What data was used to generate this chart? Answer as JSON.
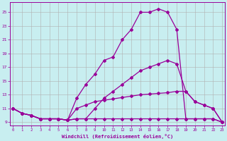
{
  "bg_color": "#c8eef0",
  "line_color": "#990099",
  "grid_color": "#b0b0b0",
  "xlabel": "Windchill (Refroidissement éolien,°C)",
  "xticks": [
    0,
    1,
    2,
    3,
    4,
    5,
    6,
    7,
    8,
    9,
    10,
    11,
    12,
    13,
    14,
    15,
    16,
    17,
    18,
    19,
    20,
    21,
    22,
    23
  ],
  "yticks": [
    9,
    11,
    13,
    15,
    17,
    19,
    21,
    23,
    25
  ],
  "xlim": [
    -0.3,
    23.3
  ],
  "ylim": [
    8.5,
    26.5
  ],
  "line1_x": [
    0,
    1,
    2,
    3,
    4,
    5,
    6,
    7,
    8,
    9,
    10,
    11,
    12,
    13,
    14,
    15,
    16,
    17,
    18,
    19,
    20,
    21,
    22,
    23
  ],
  "line1_y": [
    11,
    10.3,
    10.0,
    9.5,
    9.5,
    9.5,
    9.3,
    9.5,
    9.5,
    9.5,
    9.5,
    9.5,
    9.5,
    9.5,
    9.5,
    9.5,
    9.5,
    9.5,
    9.5,
    9.5,
    9.5,
    9.5,
    9.5,
    9.0
  ],
  "line2_x": [
    0,
    1,
    2,
    3,
    4,
    5,
    6,
    7,
    8,
    9,
    10,
    11,
    12,
    13,
    14,
    15,
    16,
    17,
    18,
    19,
    20,
    21,
    22,
    23
  ],
  "line2_y": [
    11,
    10.3,
    10.0,
    9.5,
    9.5,
    9.5,
    9.3,
    11.0,
    11.5,
    12.0,
    12.2,
    12.4,
    12.6,
    12.8,
    13.0,
    13.1,
    13.2,
    13.3,
    13.5,
    13.5,
    12.0,
    11.5,
    11.0,
    9.0
  ],
  "line3_x": [
    0,
    1,
    2,
    3,
    4,
    5,
    6,
    7,
    8,
    9,
    10,
    11,
    12,
    13,
    14,
    15,
    16,
    17,
    18,
    19,
    20,
    21,
    22,
    23
  ],
  "line3_y": [
    11,
    10.3,
    10.0,
    9.5,
    9.5,
    9.5,
    9.3,
    12.5,
    14.5,
    16.0,
    18.0,
    18.5,
    21.0,
    22.5,
    25.0,
    25.0,
    25.5,
    25.0,
    22.5,
    9.5,
    9.5,
    9.5,
    9.5,
    9.0
  ],
  "line4_x": [
    0,
    1,
    2,
    3,
    4,
    5,
    6,
    7,
    8,
    9,
    10,
    11,
    12,
    13,
    14,
    15,
    16,
    17,
    18,
    19,
    20,
    21,
    22,
    23
  ],
  "line4_y": [
    11,
    10.3,
    10.0,
    9.5,
    9.5,
    9.5,
    9.3,
    9.5,
    9.5,
    11.0,
    12.5,
    13.5,
    14.5,
    15.5,
    16.5,
    17.0,
    17.5,
    18.0,
    17.5,
    13.5,
    12.0,
    11.5,
    11.0,
    9.0
  ]
}
